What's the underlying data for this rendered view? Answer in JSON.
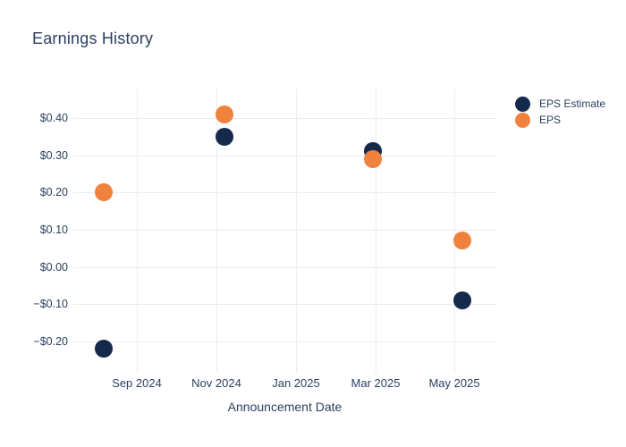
{
  "page": {
    "background": "#ffffff"
  },
  "chart_data": {
    "type": "scatter",
    "title": "Earnings History",
    "xlabel": "Announcement Date",
    "ylabel": "",
    "grid": true,
    "legend_position": "right",
    "colors": {
      "eps_estimate": "#15294b",
      "eps": "#f0823e",
      "gridline": "#e7ecf6",
      "text": "#2a3f5f",
      "background": "#ffffff"
    },
    "x_axis": {
      "tick_labels": [
        "Sep 2024",
        "Nov 2024",
        "Jan 2025",
        "Mar 2025",
        "May 2025"
      ],
      "tick_months": [
        0,
        2,
        4,
        6,
        8
      ],
      "range_months": [
        -1.6,
        9.05
      ]
    },
    "y_axis": {
      "tick_labels": [
        "$0.40",
        "$0.30",
        "$0.20",
        "$0.10",
        "$0.00",
        "−$0.10",
        "−$0.20"
      ],
      "tick_values": [
        0.4,
        0.3,
        0.2,
        0.1,
        0.0,
        -0.1,
        -0.2
      ],
      "range": [
        -0.284,
        0.479
      ]
    },
    "series": [
      {
        "name": "EPS Estimate",
        "color": "#15294b",
        "points": [
          {
            "date": "2024-08-06",
            "x_months": -0.83,
            "y": -0.22
          },
          {
            "date": "2024-11-06",
            "x_months": 2.2,
            "y": 0.35
          },
          {
            "date": "2025-02-26",
            "x_months": 5.95,
            "y": 0.31
          },
          {
            "date": "2025-05-07",
            "x_months": 8.2,
            "y": -0.09
          }
        ]
      },
      {
        "name": "EPS",
        "color": "#f0823e",
        "points": [
          {
            "date": "2024-08-06",
            "x_months": -0.83,
            "y": 0.2
          },
          {
            "date": "2024-11-06",
            "x_months": 2.2,
            "y": 0.41
          },
          {
            "date": "2025-02-26",
            "x_months": 5.95,
            "y": 0.29
          },
          {
            "date": "2025-05-07",
            "x_months": 8.2,
            "y": 0.07
          }
        ]
      }
    ]
  }
}
